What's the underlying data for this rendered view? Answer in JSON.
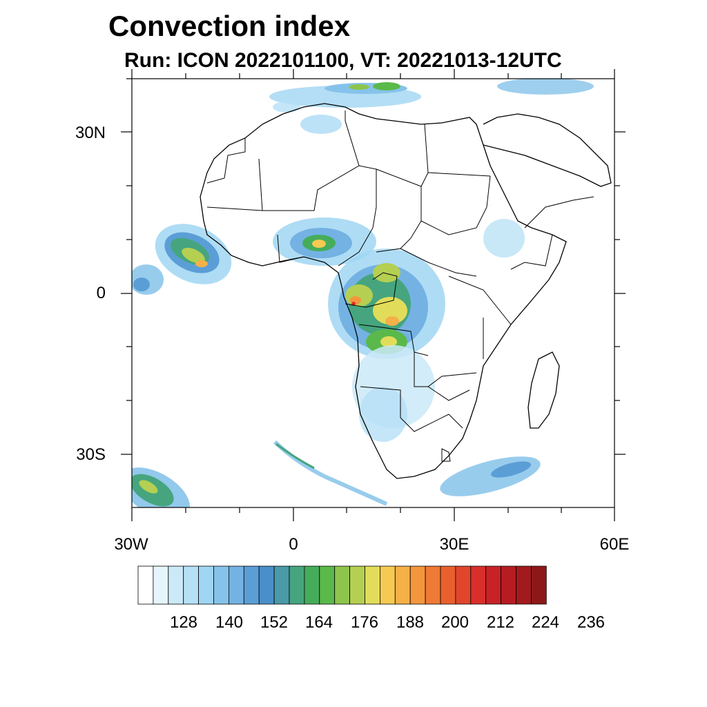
{
  "title": "Convection index",
  "subtitle": "Run: ICON 2022101100,  VT: 20221013-12UTC",
  "map": {
    "lat_labels": [
      "30N",
      "0",
      "30S"
    ],
    "lon_labels": [
      "30W",
      "0",
      "30E",
      "60E"
    ]
  },
  "colorbar": {
    "labels": [
      "128",
      "140",
      "152",
      "164",
      "176",
      "188",
      "200",
      "212",
      "224",
      "236"
    ],
    "colors": [
      "#ffffff",
      "#e6f4fb",
      "#cbe9f8",
      "#b5e0f6",
      "#a0d6f3",
      "#86c3ea",
      "#74b2e3",
      "#5b9ed6",
      "#4a8fc9",
      "#4a9aa8",
      "#46a57e",
      "#45ad5a",
      "#5ab94a",
      "#8ec44d",
      "#b5cf52",
      "#e1dd5a",
      "#f6ca52",
      "#f5b048",
      "#f4963d",
      "#ef7a35",
      "#e9602e",
      "#e1462b",
      "#d92f2a",
      "#c82227",
      "#b61c22",
      "#a31a1d",
      "#8e1818"
    ]
  }
}
